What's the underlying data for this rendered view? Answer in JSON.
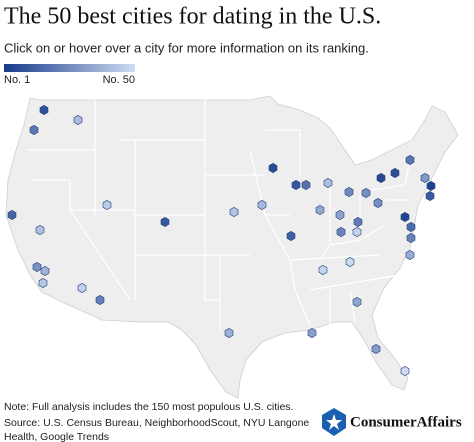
{
  "title": "The 50 best cities for dating in the U.S.",
  "subtitle": "Click on or hover over a city for more information on its ranking.",
  "legend": {
    "range": [
      {
        "value": 1,
        "label": "No. 1"
      },
      {
        "value": 50,
        "label": "No. 50"
      }
    ],
    "colors": [
      "#173a8a",
      "#cddcf2"
    ]
  },
  "cities": {
    "ranks": [
      8,
      40,
      20,
      14,
      42,
      28,
      38,
      44,
      45,
      10,
      46,
      22,
      43,
      39,
      6,
      9,
      18,
      41,
      25,
      27,
      12,
      35,
      33,
      24,
      21,
      26,
      5,
      7,
      19,
      30,
      3,
      11,
      4,
      16,
      23,
      36,
      47,
      48,
      49,
      32,
      37,
      34,
      31,
      50
    ]
  },
  "note": "Note: Full analysis includes the 150 most populous U.S. cities.",
  "source": [
    "Source: U.S. Census Bureau, NeighborhoodScout, NYU Langone",
    "Health, Google Trends"
  ],
  "brand": "ConsumerAffairs"
}
